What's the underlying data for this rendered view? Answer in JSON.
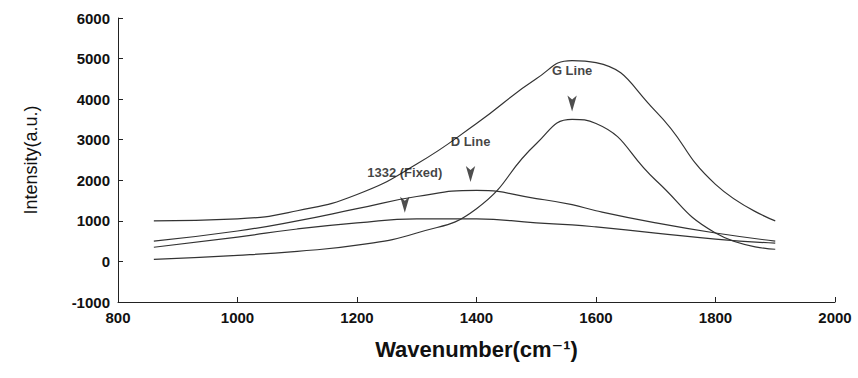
{
  "chart_data": {
    "type": "line",
    "x_label": "Wavenumber(cm⁻¹)",
    "y_label": "Intensity(a.u.)",
    "x": [
      860,
      1000,
      1100,
      1200,
      1300,
      1400,
      1500,
      1560,
      1600,
      1700,
      1800,
      1900
    ],
    "series": [
      {
        "color": "#333333",
        "values": [
          1000,
          1050,
          1250,
          1650,
          2400,
          3400,
          4500,
          4950,
          4900,
          3700,
          1900,
          1000
        ]
      },
      {
        "color": "#333333",
        "values": [
          50,
          150,
          250,
          400,
          700,
          1300,
          2900,
          3500,
          3400,
          2000,
          700,
          300
        ]
      },
      {
        "color": "#333333",
        "values": [
          500,
          750,
          1000,
          1300,
          1600,
          1750,
          1550,
          1400,
          1250,
          950,
          700,
          500
        ]
      },
      {
        "color": "#333333",
        "values": [
          350,
          600,
          800,
          950,
          1050,
          1050,
          950,
          900,
          850,
          700,
          550,
          450
        ]
      }
    ],
    "annotations": [
      {
        "text": "G Line",
        "x": 1560,
        "y": 3500
      },
      {
        "text": "D Line",
        "x": 1390,
        "y": 1760
      },
      {
        "text": "1332 (Fixed)",
        "x": 1280,
        "y": 1000
      }
    ],
    "xlim": [
      800,
      2000
    ],
    "xticks": [
      800,
      1000,
      1200,
      1400,
      1600,
      1800,
      2000
    ],
    "ylim": [
      -1000,
      6000
    ],
    "yticks": [
      -1000,
      0,
      1000,
      2000,
      3000,
      4000,
      5000,
      6000
    ],
    "grid": false
  }
}
